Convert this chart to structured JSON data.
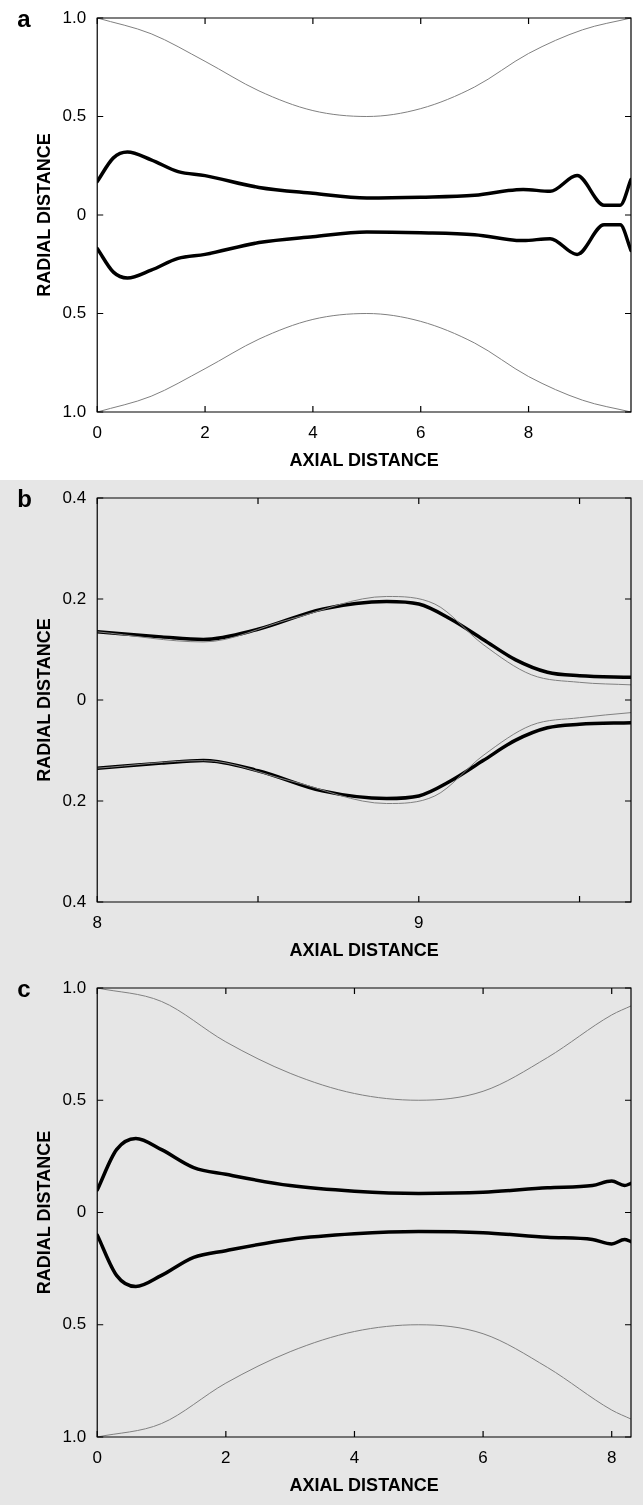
{
  "chart_data": [
    {
      "type": "line",
      "title": "a",
      "xlabel": "AXIAL DISTANCE",
      "ylabel": "RADIAL DISTANCE",
      "xlim": [
        0,
        9.9
      ],
      "xticks": [
        0,
        2,
        4,
        6,
        8
      ],
      "ylim": [
        -1,
        1
      ],
      "yticks": [
        {
          "value": 1,
          "label": "1.0"
        },
        0.5,
        0,
        {
          "value": -0.5,
          "label": "0.5"
        },
        {
          "value": -1,
          "label": "1.0"
        }
      ],
      "series": [
        {
          "color": "#808080",
          "x": [
            0,
            1,
            2,
            3,
            4,
            5,
            6,
            7,
            8,
            9,
            9.9
          ],
          "values": [
            1.0,
            0.92,
            0.78,
            0.63,
            0.53,
            0.5,
            0.54,
            0.65,
            0.82,
            0.94,
            1.0
          ]
        },
        {
          "color": "#808080",
          "x": [
            0,
            1,
            2,
            3,
            4,
            5,
            6,
            7,
            8,
            9,
            9.9
          ],
          "values": [
            -1.0,
            -0.92,
            -0.78,
            -0.63,
            -0.53,
            -0.5,
            -0.54,
            -0.65,
            -0.82,
            -0.94,
            -1.0
          ]
        },
        {
          "color": "#000000",
          "x": [
            0,
            0.3,
            0.56,
            1,
            1.5,
            2,
            3,
            4,
            5,
            6,
            7,
            7.9,
            8.4,
            8.9,
            9.4,
            9.7,
            9.9
          ],
          "values": [
            0.17,
            0.29,
            0.32,
            0.28,
            0.22,
            0.2,
            0.14,
            0.11,
            0.086,
            0.09,
            0.1,
            0.13,
            0.12,
            0.2,
            0.05,
            0.05,
            0.18
          ]
        },
        {
          "color": "#000000",
          "x": [
            0,
            0.3,
            0.56,
            1,
            1.5,
            2,
            3,
            4,
            5,
            6,
            7,
            7.9,
            8.4,
            8.9,
            9.4,
            9.7,
            9.9
          ],
          "values": [
            -0.17,
            -0.29,
            -0.32,
            -0.28,
            -0.22,
            -0.2,
            -0.14,
            -0.11,
            -0.086,
            -0.09,
            -0.1,
            -0.13,
            -0.12,
            -0.2,
            -0.05,
            -0.05,
            -0.18
          ]
        }
      ]
    },
    {
      "type": "line",
      "title": "b",
      "xlabel": "AXIAL DISTANCE",
      "ylabel": "RADIAL DISTANCE",
      "xlim": [
        8,
        9.66
      ],
      "xticks": [
        8,
        {
          "value": 8.5,
          "label": null
        },
        9,
        {
          "value": 9.5,
          "label": null
        }
      ],
      "ylim": [
        -0.4,
        0.4
      ],
      "yticks": [
        0.4,
        0.2,
        0,
        {
          "value": -0.2,
          "label": "0.2"
        },
        {
          "value": -0.4,
          "label": "0.4"
        }
      ],
      "series": [
        {
          "color": "#808080",
          "x": [
            8,
            8.33,
            8.6,
            8.9,
            9.05,
            9.2,
            9.35,
            9.5,
            9.66
          ],
          "values": [
            0.135,
            0.115,
            0.16,
            0.205,
            0.19,
            0.11,
            0.05,
            0.035,
            0.03
          ]
        },
        {
          "color": "#808080",
          "x": [
            8,
            8.33,
            8.6,
            8.9,
            9.05,
            9.2,
            9.35,
            9.5,
            9.66
          ],
          "values": [
            -0.135,
            -0.12,
            -0.16,
            -0.205,
            -0.19,
            -0.11,
            -0.05,
            -0.035,
            -0.025
          ]
        },
        {
          "color": "#000000",
          "x": [
            8,
            8.2,
            8.33,
            8.5,
            8.7,
            8.9,
            9,
            9.1,
            9.2,
            9.3,
            9.4,
            9.5,
            9.66
          ],
          "values": [
            0.135,
            0.125,
            0.12,
            0.14,
            0.18,
            0.195,
            0.19,
            0.16,
            0.12,
            0.08,
            0.055,
            0.048,
            0.045
          ]
        },
        {
          "color": "#000000",
          "x": [
            8,
            8.2,
            8.33,
            8.5,
            8.7,
            8.9,
            9,
            9.1,
            9.2,
            9.3,
            9.4,
            9.5,
            9.66
          ],
          "values": [
            -0.135,
            -0.125,
            -0.12,
            -0.14,
            -0.18,
            -0.195,
            -0.19,
            -0.16,
            -0.12,
            -0.08,
            -0.055,
            -0.048,
            -0.045
          ]
        }
      ]
    },
    {
      "type": "line",
      "title": "c",
      "xlabel": "AXIAL DISTANCE",
      "ylabel": "RADIAL DISTANCE",
      "xlim": [
        0,
        8.3
      ],
      "xticks": [
        0,
        2,
        4,
        6,
        8
      ],
      "ylim": [
        -1,
        1
      ],
      "yticks": [
        {
          "value": 1,
          "label": "1.0"
        },
        0.5,
        0,
        {
          "value": -0.5,
          "label": "0.5"
        },
        {
          "value": -1,
          "label": "1.0"
        }
      ],
      "series": [
        {
          "color": "#808080",
          "x": [
            0,
            1,
            2,
            3,
            4,
            5,
            6,
            7,
            8,
            8.3
          ],
          "values": [
            1.0,
            0.94,
            0.76,
            0.62,
            0.53,
            0.5,
            0.54,
            0.69,
            0.88,
            0.92
          ]
        },
        {
          "color": "#808080",
          "x": [
            0,
            1,
            2,
            3,
            4,
            5,
            6,
            7,
            8,
            8.3
          ],
          "values": [
            -1.0,
            -0.94,
            -0.76,
            -0.62,
            -0.53,
            -0.5,
            -0.54,
            -0.69,
            -0.88,
            -0.92
          ]
        },
        {
          "color": "#000000",
          "x": [
            0,
            0.3,
            0.6,
            1,
            1.5,
            2,
            3,
            4,
            5,
            6,
            7,
            7.7,
            8,
            8.2,
            8.3
          ],
          "values": [
            0.1,
            0.28,
            0.33,
            0.28,
            0.2,
            0.17,
            0.12,
            0.095,
            0.085,
            0.09,
            0.11,
            0.12,
            0.14,
            0.12,
            0.13
          ]
        },
        {
          "color": "#000000",
          "x": [
            0,
            0.3,
            0.6,
            1,
            1.5,
            2,
            3,
            4,
            5,
            6,
            7,
            7.7,
            8,
            8.2,
            8.3
          ],
          "values": [
            -0.1,
            -0.28,
            -0.33,
            -0.28,
            -0.2,
            -0.17,
            -0.12,
            -0.095,
            -0.085,
            -0.09,
            -0.11,
            -0.12,
            -0.14,
            -0.12,
            -0.13
          ]
        }
      ]
    }
  ]
}
